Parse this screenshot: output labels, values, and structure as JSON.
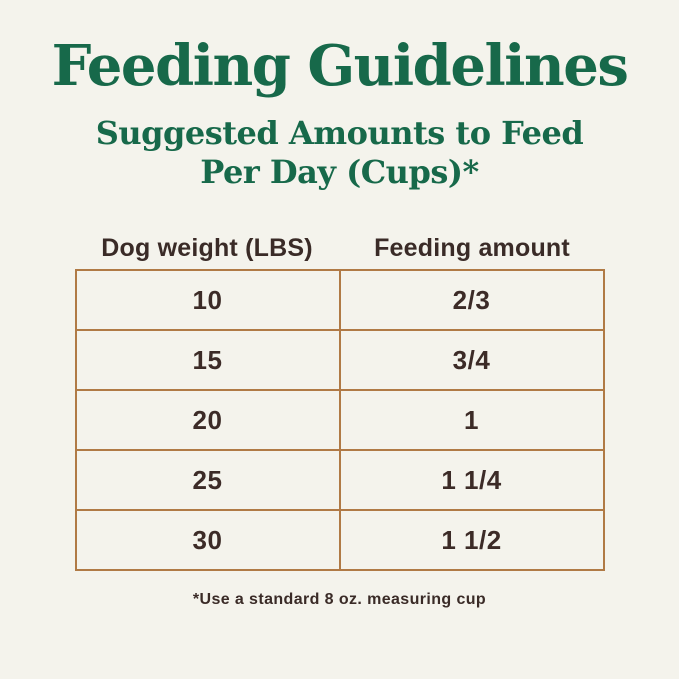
{
  "header": {
    "title": "Feeding Guidelines",
    "subtitle_line1": "Suggested Amounts to Feed",
    "subtitle_line2": "Per Day (Cups)*"
  },
  "table": {
    "columns": [
      "Dog weight (LBS)",
      "Feeding amount"
    ],
    "rows": [
      {
        "weight": "10",
        "amount": "2/3"
      },
      {
        "weight": "15",
        "amount": "3/4"
      },
      {
        "weight": "20",
        "amount": "1"
      },
      {
        "weight": "25",
        "amount": "1 1/4"
      },
      {
        "weight": "30",
        "amount": "1 1/2"
      }
    ]
  },
  "footer": {
    "note": "*Use a standard 8 oz. measuring cup"
  },
  "colors": {
    "background": "#f4f3ec",
    "heading_green": "#17694a",
    "table_border": "#b07a45",
    "table_text": "#3c2b27",
    "header_text": "#3a2b27"
  },
  "chart_data": {
    "type": "table",
    "title": "Feeding Guidelines",
    "subtitle": "Suggested Amounts to Feed Per Day (Cups)*",
    "columns": [
      "Dog weight (LBS)",
      "Feeding amount"
    ],
    "rows": [
      [
        "10",
        "2/3"
      ],
      [
        "15",
        "3/4"
      ],
      [
        "20",
        "1"
      ],
      [
        "25",
        "1 1/4"
      ],
      [
        "30",
        "1 1/2"
      ]
    ],
    "footnote": "*Use a standard 8 oz. measuring cup",
    "units": "cups per day"
  }
}
